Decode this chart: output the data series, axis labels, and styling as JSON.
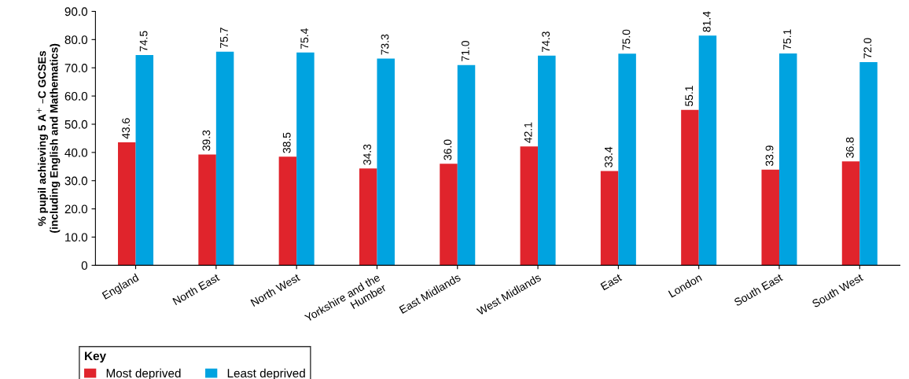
{
  "chart_data": {
    "type": "bar",
    "ylabel": "% pupil achieving 5 A$^{+}$ –C GCSEs\n(including English and Mathematics)",
    "categories": [
      "England",
      "North East",
      "North West",
      "Yorkshire and the\nHumber",
      "East Midlands",
      "West Midlands",
      "East",
      "London",
      "South East",
      "South West"
    ],
    "series": [
      {
        "name": "Most deprived",
        "color": "#e0242c",
        "values": [
          43.6,
          39.3,
          38.5,
          34.3,
          36.0,
          42.1,
          33.4,
          55.1,
          33.9,
          36.8
        ],
        "value_labels": [
          "43.6",
          "39.3",
          "38.5",
          "34.3",
          "36.0",
          "42.1",
          "33.4",
          "55.1",
          "33.9",
          "36.8"
        ]
      },
      {
        "name": "Least deprived",
        "color": "#00a3e0",
        "values": [
          74.5,
          75.7,
          75.4,
          73.3,
          71.0,
          74.3,
          75.0,
          81.4,
          75.1,
          72.0
        ],
        "value_labels": [
          "74.5",
          "75.7",
          "75.4",
          "73.3",
          "71.0",
          "74.3",
          "75.0",
          "81.4",
          "75.1",
          "72.0"
        ]
      }
    ],
    "ylim": [
      0,
      90
    ],
    "yticks": [
      0,
      {
        "value": 10,
        "label": "10.0"
      },
      {
        "value": 20,
        "label": "20.0"
      },
      {
        "value": 30,
        "label": "30.0"
      },
      {
        "value": 40,
        "label": "40.0"
      },
      {
        "value": 50,
        "label": "50.0"
      },
      {
        "value": 60,
        "label": "60.0"
      },
      {
        "value": 70,
        "label": "70.0"
      },
      {
        "value": 80,
        "label": "80.0"
      },
      {
        "value": 90,
        "label": "90.0"
      }
    ],
    "legend_title": "Key",
    "legend": "bottom left",
    "grid": false
  }
}
